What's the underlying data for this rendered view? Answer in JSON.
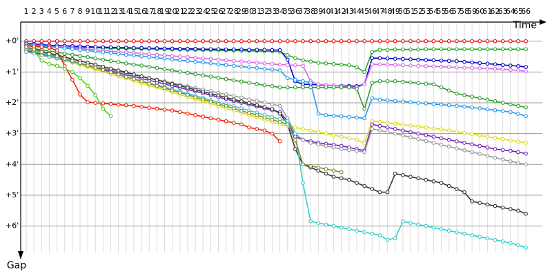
{
  "chart_data": {
    "type": "line",
    "x_label": "Time",
    "y_label": "Gap",
    "categories": [
      1,
      2,
      3,
      4,
      5,
      6,
      7,
      8,
      9,
      10,
      11,
      12,
      13,
      14,
      15,
      16,
      17,
      18,
      19,
      20,
      21,
      22,
      23,
      24,
      25,
      26,
      27,
      28,
      29,
      30,
      31,
      32,
      33,
      34,
      35,
      36,
      37,
      38,
      39,
      40,
      41,
      42,
      43,
      44,
      45,
      46,
      47,
      48,
      49,
      50,
      51,
      52,
      53,
      54,
      55,
      56,
      57,
      58,
      59,
      60,
      61,
      62,
      63,
      64,
      65,
      66
    ],
    "ylim": [
      -0.62,
      6.95
    ],
    "y_inverted": true,
    "grid": true,
    "yticks": [
      {
        "value": 0,
        "label": "+0'"
      },
      {
        "value": 1,
        "label": "+1'"
      },
      {
        "value": 2,
        "label": "+2'"
      },
      {
        "value": 3,
        "label": "+3'"
      },
      {
        "value": 4,
        "label": "+4'"
      },
      {
        "value": 5,
        "label": "+5'"
      },
      {
        "value": 6,
        "label": "+6'"
      }
    ],
    "series": [
      {
        "color": "#e81010",
        "values": [
          0,
          0,
          0,
          0,
          0,
          0,
          0,
          0,
          0,
          0,
          0,
          0,
          0,
          0,
          0,
          0,
          0,
          0,
          0,
          0,
          0,
          0,
          0,
          0,
          0,
          0,
          0,
          0,
          0,
          0,
          0,
          0,
          0,
          0,
          0,
          0,
          0,
          0,
          0,
          0,
          0,
          0,
          0,
          0,
          0,
          0,
          0,
          0,
          0,
          0,
          0,
          0,
          0,
          0,
          0,
          0,
          0,
          0,
          0,
          0,
          0,
          0,
          0,
          0,
          0,
          0
        ]
      },
      {
        "color": "#22aa22",
        "values": [
          0.15,
          0.16,
          0.17,
          0.18,
          0.19,
          0.2,
          0.2,
          0.21,
          0.21,
          0.22,
          0.22,
          0.23,
          0.23,
          0.24,
          0.24,
          0.25,
          0.25,
          0.26,
          0.26,
          0.27,
          0.27,
          0.28,
          0.28,
          0.29,
          0.29,
          0.3,
          0.3,
          0.31,
          0.31,
          0.32,
          0.32,
          0.33,
          0.33,
          0.34,
          0.45,
          0.55,
          0.62,
          0.66,
          0.7,
          0.72,
          0.74,
          0.76,
          0.78,
          0.85,
          1.0,
          0.35,
          0.28,
          0.28,
          0.27,
          0.27,
          0.27,
          0.27,
          0.26,
          0.26,
          0.26,
          0.26,
          0.26,
          0.26,
          0.26,
          0.26,
          0.26,
          0.26,
          0.26,
          0.26,
          0.26,
          0.26
        ]
      },
      {
        "color": "#0000cc",
        "values": [
          0.07,
          0.09,
          0.11,
          0.13,
          0.14,
          0.15,
          0.16,
          0.17,
          0.18,
          0.19,
          0.2,
          0.2,
          0.21,
          0.21,
          0.22,
          0.22,
          0.23,
          0.23,
          0.24,
          0.24,
          0.25,
          0.25,
          0.25,
          0.26,
          0.26,
          0.26,
          0.27,
          0.27,
          0.27,
          0.28,
          0.28,
          0.28,
          0.29,
          0.29,
          0.6,
          1.3,
          1.4,
          1.4,
          1.42,
          1.43,
          1.44,
          1.45,
          1.45,
          1.46,
          1.4,
          0.55,
          0.55,
          0.56,
          0.57,
          0.58,
          0.59,
          0.6,
          0.61,
          0.62,
          0.63,
          0.64,
          0.65,
          0.67,
          0.69,
          0.71,
          0.73,
          0.75,
          0.77,
          0.79,
          0.81,
          0.84
        ]
      },
      {
        "color": "#dd66ee",
        "values": [
          0.1,
          0.12,
          0.14,
          0.16,
          0.18,
          0.2,
          0.22,
          0.24,
          0.26,
          0.28,
          0.3,
          0.32,
          0.34,
          0.36,
          0.38,
          0.4,
          0.42,
          0.44,
          0.46,
          0.48,
          0.5,
          0.52,
          0.54,
          0.56,
          0.58,
          0.6,
          0.62,
          0.64,
          0.66,
          0.68,
          0.7,
          0.72,
          0.74,
          0.76,
          0.77,
          0.78,
          0.8,
          1.3,
          1.4,
          1.42,
          1.44,
          1.46,
          1.48,
          1.5,
          1.4,
          0.75,
          0.75,
          0.76,
          0.77,
          0.78,
          0.79,
          0.8,
          0.81,
          0.82,
          0.83,
          0.84,
          0.85,
          0.86,
          0.87,
          0.88,
          0.89,
          0.9,
          0.91,
          0.93,
          0.95,
          0.98
        ]
      },
      {
        "color": "#2299ee",
        "values": [
          0.1,
          0.13,
          0.15,
          0.18,
          0.2,
          0.23,
          0.25,
          0.28,
          0.31,
          0.33,
          0.36,
          0.38,
          0.41,
          0.44,
          0.46,
          0.49,
          0.51,
          0.54,
          0.56,
          0.59,
          0.62,
          0.64,
          0.67,
          0.69,
          0.72,
          0.75,
          0.77,
          0.8,
          0.82,
          0.85,
          0.87,
          0.9,
          0.92,
          0.95,
          1.2,
          1.25,
          1.3,
          1.35,
          2.35,
          2.4,
          2.42,
          2.44,
          2.46,
          2.48,
          2.5,
          1.85,
          1.9,
          1.92,
          1.94,
          1.96,
          1.98,
          2.0,
          2.02,
          2.04,
          2.06,
          2.08,
          2.1,
          2.12,
          2.15,
          2.18,
          2.21,
          2.24,
          2.27,
          2.3,
          2.36,
          2.43
        ]
      },
      {
        "color": "#339933",
        "values": [
          0.2,
          0.24,
          0.28,
          0.32,
          0.36,
          0.4,
          0.44,
          0.48,
          0.52,
          0.56,
          0.6,
          0.64,
          0.68,
          0.72,
          0.76,
          0.79,
          0.83,
          0.87,
          0.91,
          0.95,
          0.99,
          1.03,
          1.07,
          1.11,
          1.15,
          1.19,
          1.23,
          1.27,
          1.31,
          1.35,
          1.39,
          1.43,
          1.46,
          1.5,
          1.5,
          1.5,
          1.5,
          1.5,
          1.5,
          1.5,
          1.5,
          1.5,
          1.5,
          1.55,
          2.2,
          1.35,
          1.3,
          1.3,
          1.3,
          1.32,
          1.34,
          1.36,
          1.38,
          1.4,
          1.5,
          1.6,
          1.7,
          1.75,
          1.8,
          1.85,
          1.9,
          1.95,
          2.0,
          2.05,
          2.1,
          2.15
        ]
      },
      {
        "color": "#dddd11",
        "values": [
          0.25,
          0.32,
          0.4,
          0.47,
          0.55,
          0.62,
          0.7,
          0.77,
          0.84,
          0.92,
          0.99,
          1.07,
          1.14,
          1.21,
          1.29,
          1.36,
          1.44,
          1.51,
          1.58,
          1.66,
          1.73,
          1.81,
          1.88,
          1.95,
          2.03,
          2.1,
          2.18,
          2.25,
          2.32,
          2.4,
          2.47,
          2.55,
          2.62,
          2.7,
          2.75,
          2.8,
          2.85,
          2.9,
          2.95,
          3.0,
          3.05,
          3.1,
          3.15,
          3.2,
          3.3,
          2.6,
          2.62,
          2.65,
          2.68,
          2.71,
          2.74,
          2.77,
          2.8,
          2.83,
          2.86,
          2.9,
          2.94,
          2.98,
          3.02,
          3.06,
          3.1,
          3.14,
          3.18,
          3.22,
          3.26,
          3.3
        ]
      },
      {
        "color": "#7722bb",
        "values": [
          0.3,
          0.36,
          0.42,
          0.48,
          0.54,
          0.6,
          0.66,
          0.72,
          0.78,
          0.85,
          0.91,
          0.97,
          1.03,
          1.09,
          1.15,
          1.21,
          1.27,
          1.33,
          1.39,
          1.45,
          1.51,
          1.57,
          1.63,
          1.69,
          1.75,
          1.82,
          1.88,
          1.94,
          2.0,
          2.06,
          2.12,
          2.18,
          2.24,
          2.3,
          2.6,
          3.1,
          3.2,
          3.25,
          3.3,
          3.33,
          3.36,
          3.4,
          3.45,
          3.5,
          3.55,
          2.7,
          2.75,
          2.8,
          2.85,
          2.9,
          2.95,
          3.0,
          3.05,
          3.1,
          3.15,
          3.2,
          3.25,
          3.3,
          3.35,
          3.4,
          3.45,
          3.5,
          3.53,
          3.56,
          3.6,
          3.65
        ]
      },
      {
        "color": "#999999",
        "values": [
          0.35,
          0.4,
          0.46,
          0.51,
          0.56,
          0.62,
          0.67,
          0.72,
          0.77,
          0.83,
          0.88,
          0.93,
          0.99,
          1.04,
          1.09,
          1.15,
          1.2,
          1.25,
          1.3,
          1.36,
          1.41,
          1.46,
          1.52,
          1.57,
          1.62,
          1.68,
          1.73,
          1.78,
          1.83,
          1.89,
          1.94,
          1.99,
          2.05,
          2.1,
          2.5,
          3.0,
          3.2,
          3.3,
          3.35,
          3.4,
          3.45,
          3.5,
          3.53,
          3.56,
          3.6,
          2.85,
          2.9,
          2.95,
          3.0,
          3.06,
          3.12,
          3.18,
          3.24,
          3.3,
          3.36,
          3.42,
          3.48,
          3.54,
          3.6,
          3.66,
          3.72,
          3.78,
          3.84,
          3.9,
          3.95,
          4.0
        ]
      },
      {
        "color": "#333333",
        "values": [
          0.2,
          0.26,
          0.33,
          0.39,
          0.45,
          0.51,
          0.58,
          0.64,
          0.7,
          0.76,
          0.83,
          0.89,
          0.95,
          1.01,
          1.08,
          1.14,
          1.2,
          1.26,
          1.33,
          1.39,
          1.45,
          1.51,
          1.58,
          1.64,
          1.7,
          1.76,
          1.83,
          1.89,
          1.95,
          2.01,
          2.08,
          2.14,
          2.2,
          2.35,
          2.7,
          3.5,
          4.0,
          4.1,
          4.2,
          4.3,
          4.4,
          4.45,
          4.5,
          4.6,
          4.7,
          4.8,
          4.9,
          4.9,
          4.3,
          4.35,
          4.4,
          4.45,
          4.5,
          4.55,
          4.6,
          4.7,
          4.8,
          4.9,
          5.2,
          5.25,
          5.3,
          5.35,
          5.4,
          5.45,
          5.5,
          5.6
        ]
      },
      {
        "color": "#33cccc",
        "values": [
          0.25,
          0.32,
          0.39,
          0.46,
          0.53,
          0.6,
          0.66,
          0.73,
          0.8,
          0.87,
          0.94,
          1.01,
          1.08,
          1.15,
          1.22,
          1.29,
          1.36,
          1.42,
          1.49,
          1.56,
          1.63,
          1.7,
          1.77,
          1.84,
          1.91,
          1.98,
          2.05,
          2.11,
          2.18,
          2.25,
          2.32,
          2.39,
          2.46,
          2.53,
          2.6,
          3.0,
          4.6,
          5.85,
          5.9,
          5.95,
          6.0,
          6.05,
          6.1,
          6.15,
          6.2,
          6.25,
          6.3,
          6.45,
          6.4,
          5.85,
          5.9,
          5.95,
          6.0,
          6.05,
          6.1,
          6.15,
          6.2,
          6.25,
          6.3,
          6.35,
          6.4,
          6.45,
          6.5,
          6.55,
          6.62,
          6.7
        ]
      },
      {
        "color": "#ee2200",
        "values": [
          0.15,
          0.17,
          0.19,
          0.21,
          0.3,
          0.8,
          1.25,
          1.73,
          1.98,
          2.0,
          2.02,
          2.04,
          2.06,
          2.08,
          2.1,
          2.13,
          2.16,
          2.19,
          2.22,
          2.25,
          2.3,
          2.35,
          2.4,
          2.45,
          2.5,
          2.55,
          2.6,
          2.65,
          2.7,
          2.8,
          2.85,
          2.9,
          3.0,
          3.25,
          null,
          null,
          null,
          null,
          null,
          null,
          null,
          null,
          null,
          null,
          null,
          null,
          null,
          null,
          null,
          null,
          null,
          null,
          null,
          null,
          null,
          null,
          null,
          null,
          null,
          null,
          null,
          null,
          null,
          null,
          null,
          null
        ]
      },
      {
        "color": "#55cc11",
        "values": [
          0.2,
          0.3,
          0.63,
          0.74,
          0.8,
          0.9,
          1.0,
          1.2,
          1.45,
          1.75,
          2.2,
          2.43,
          null,
          null,
          null,
          null,
          null,
          null,
          null,
          null,
          null,
          null,
          null,
          null,
          null,
          null,
          null,
          null,
          null,
          null,
          null,
          null,
          null,
          null,
          null,
          null,
          null,
          null,
          null,
          null,
          null,
          null,
          null,
          null,
          null,
          null,
          null,
          null,
          null,
          null,
          null,
          null,
          null,
          null,
          null,
          null,
          null,
          null,
          null,
          null,
          null,
          null,
          null,
          null,
          null,
          null
        ]
      },
      {
        "color": "#888833",
        "values": [
          0.2,
          0.27,
          0.35,
          0.42,
          0.49,
          0.57,
          0.64,
          0.71,
          0.79,
          0.86,
          0.94,
          1.01,
          1.08,
          1.16,
          1.23,
          1.3,
          1.38,
          1.45,
          1.52,
          1.6,
          1.67,
          1.74,
          1.82,
          1.89,
          1.96,
          2.04,
          2.11,
          2.18,
          2.26,
          2.33,
          2.4,
          2.48,
          2.55,
          2.62,
          2.7,
          3.2,
          4.0,
          4.05,
          4.1,
          4.15,
          4.2,
          4.25,
          null,
          null,
          null,
          null,
          null,
          null,
          null,
          null,
          null,
          null,
          null,
          null,
          null,
          null,
          null,
          null,
          null,
          null,
          null,
          null,
          null,
          null,
          null,
          null
        ]
      }
    ]
  }
}
